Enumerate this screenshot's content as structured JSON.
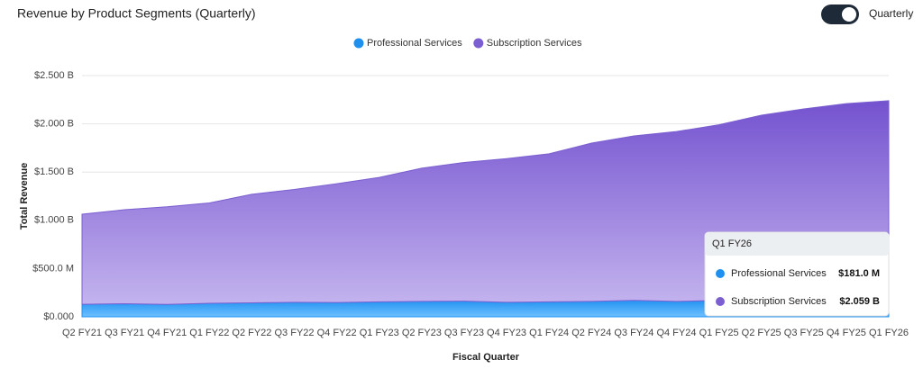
{
  "chart_data": {
    "type": "stacked-area",
    "title": "Revenue by Product Segments (Quarterly)",
    "toggle_label": "Quarterly",
    "x_label": "Fiscal Quarter",
    "y_label": "Total Revenue",
    "categories": [
      "Q2 FY21",
      "Q3 FY21",
      "Q4 FY21",
      "Q1 FY22",
      "Q2 FY22",
      "Q3 FY22",
      "Q4 FY22",
      "Q1 FY23",
      "Q2 FY23",
      "Q3 FY23",
      "Q4 FY23",
      "Q1 FY24",
      "Q2 FY24",
      "Q3 FY24",
      "Q4 FY24",
      "Q1 FY25",
      "Q2 FY25",
      "Q3 FY25",
      "Q4 FY25",
      "Q1 FY26"
    ],
    "series": [
      {
        "name": "Professional Services",
        "color": "#1e90f0",
        "values": [
          130000000,
          135000000,
          128000000,
          140000000,
          145000000,
          150000000,
          148000000,
          155000000,
          160000000,
          162000000,
          150000000,
          155000000,
          160000000,
          170000000,
          160000000,
          170000000,
          175000000,
          178000000,
          180000000,
          181000000
        ]
      },
      {
        "name": "Subscription Services",
        "color": "#7b5fd1",
        "values": [
          933000000,
          975000000,
          1012000000,
          1040000000,
          1125000000,
          1170000000,
          1232000000,
          1290000000,
          1380000000,
          1438000000,
          1490000000,
          1535000000,
          1640000000,
          1705000000,
          1760000000,
          1820000000,
          1915000000,
          1977000000,
          2030000000,
          2059000000
        ]
      }
    ],
    "ylim": [
      0,
      2500000000
    ],
    "yticks": [
      {
        "value": 0,
        "label": "$0.000"
      },
      {
        "value": 500000000,
        "label": "$500.0 M"
      },
      {
        "value": 1000000000,
        "label": "$1.000 B"
      },
      {
        "value": 1500000000,
        "label": "$1.500 B"
      },
      {
        "value": 2000000000,
        "label": "$2.000 B"
      },
      {
        "value": 2500000000,
        "label": "$2.500 B"
      }
    ],
    "grid": true,
    "legend": "top",
    "tooltip": {
      "title": "Q1 FY26",
      "labels": [
        "$181.0 M",
        "$2.059 B"
      ]
    }
  }
}
